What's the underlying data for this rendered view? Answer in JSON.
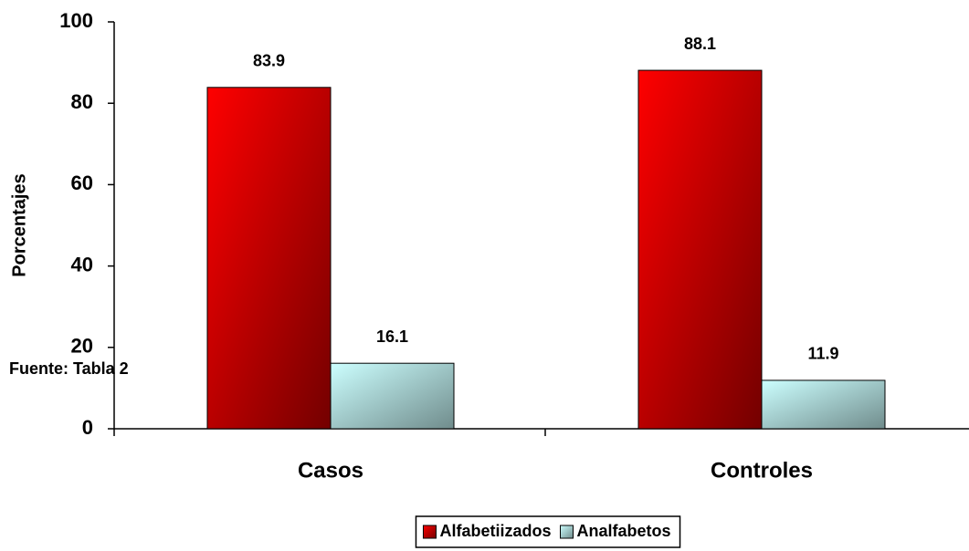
{
  "chart_data": {
    "type": "bar",
    "y_label": "Porcentajes",
    "annotation": "Fuente: Tabla 2",
    "categories": [
      "Casos",
      "Controles"
    ],
    "series": [
      {
        "name": "Alfabetiizados",
        "color": "#ff0000",
        "values": [
          83.9,
          88.1
        ]
      },
      {
        "name": "Analfabetos",
        "color": "#ccffff",
        "values": [
          16.1,
          11.9
        ]
      }
    ],
    "ylim": [
      0,
      100
    ],
    "yticks": [
      0,
      20,
      40,
      60,
      80,
      100
    ],
    "grid": false,
    "legend": "bottom"
  }
}
